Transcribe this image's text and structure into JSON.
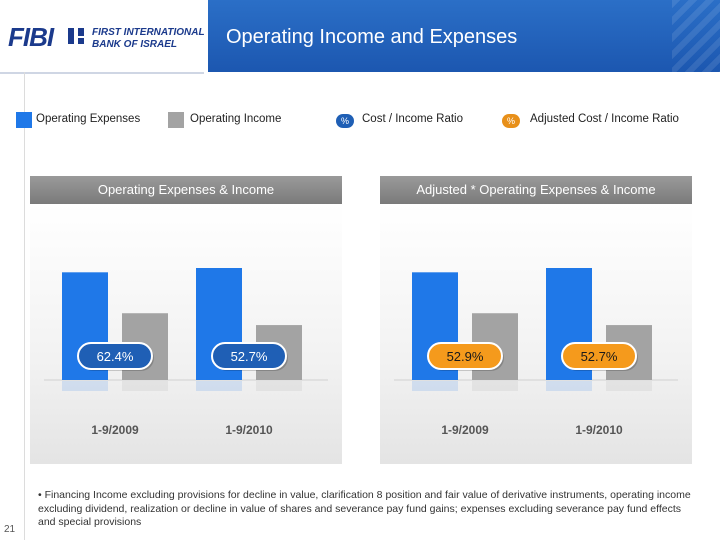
{
  "header": {
    "logo_text": "FIBI",
    "logo_line1": "FIRST INTERNATIONAL",
    "logo_line2": "BANK OF ISRAEL",
    "title": "Operating Income and Expenses"
  },
  "legend": {
    "expenses": "Operating Expenses",
    "income": "Operating Income",
    "ratio_badge": "%",
    "ratio": "Cost / Income Ratio",
    "adj_ratio_badge": "%",
    "adj_ratio": "Adjusted Cost / Income Ratio"
  },
  "colors": {
    "expenses": "#1f78e8",
    "income": "#a3a3a3",
    "ratio_badge": "#1f5fb5",
    "adj_ratio_badge": "#e8901a"
  },
  "chart_data": [
    {
      "type": "bar",
      "title": "Operating Expenses & Income",
      "categories": [
        "1-9/2009",
        "1-9/2010"
      ],
      "series": [
        {
          "name": "Operating Expenses",
          "values": [
            100,
            104
          ]
        },
        {
          "name": "Operating Income",
          "values": [
            62,
            51
          ]
        }
      ],
      "ratios": [
        "62.4%",
        "52.7%"
      ],
      "ratio_style": "blue",
      "ylim": [
        0,
        130
      ]
    },
    {
      "type": "bar",
      "title": "Adjusted * Operating Expenses & Income",
      "categories": [
        "1-9/2009",
        "1-9/2010"
      ],
      "series": [
        {
          "name": "Operating Expenses",
          "values": [
            100,
            104
          ]
        },
        {
          "name": "Operating Income",
          "values": [
            62,
            51
          ]
        }
      ],
      "ratios": [
        "52.9%",
        "52.7%"
      ],
      "ratio_style": "orange",
      "ylim": [
        0,
        130
      ]
    }
  ],
  "footnote": "• Financing Income excluding provisions for decline in value, clarification 8 position and fair value of derivative instruments, operating income excluding dividend, realization or decline in value of shares and severance pay fund gains; expenses excluding severance pay fund effects and special provisions",
  "page_number": "21"
}
